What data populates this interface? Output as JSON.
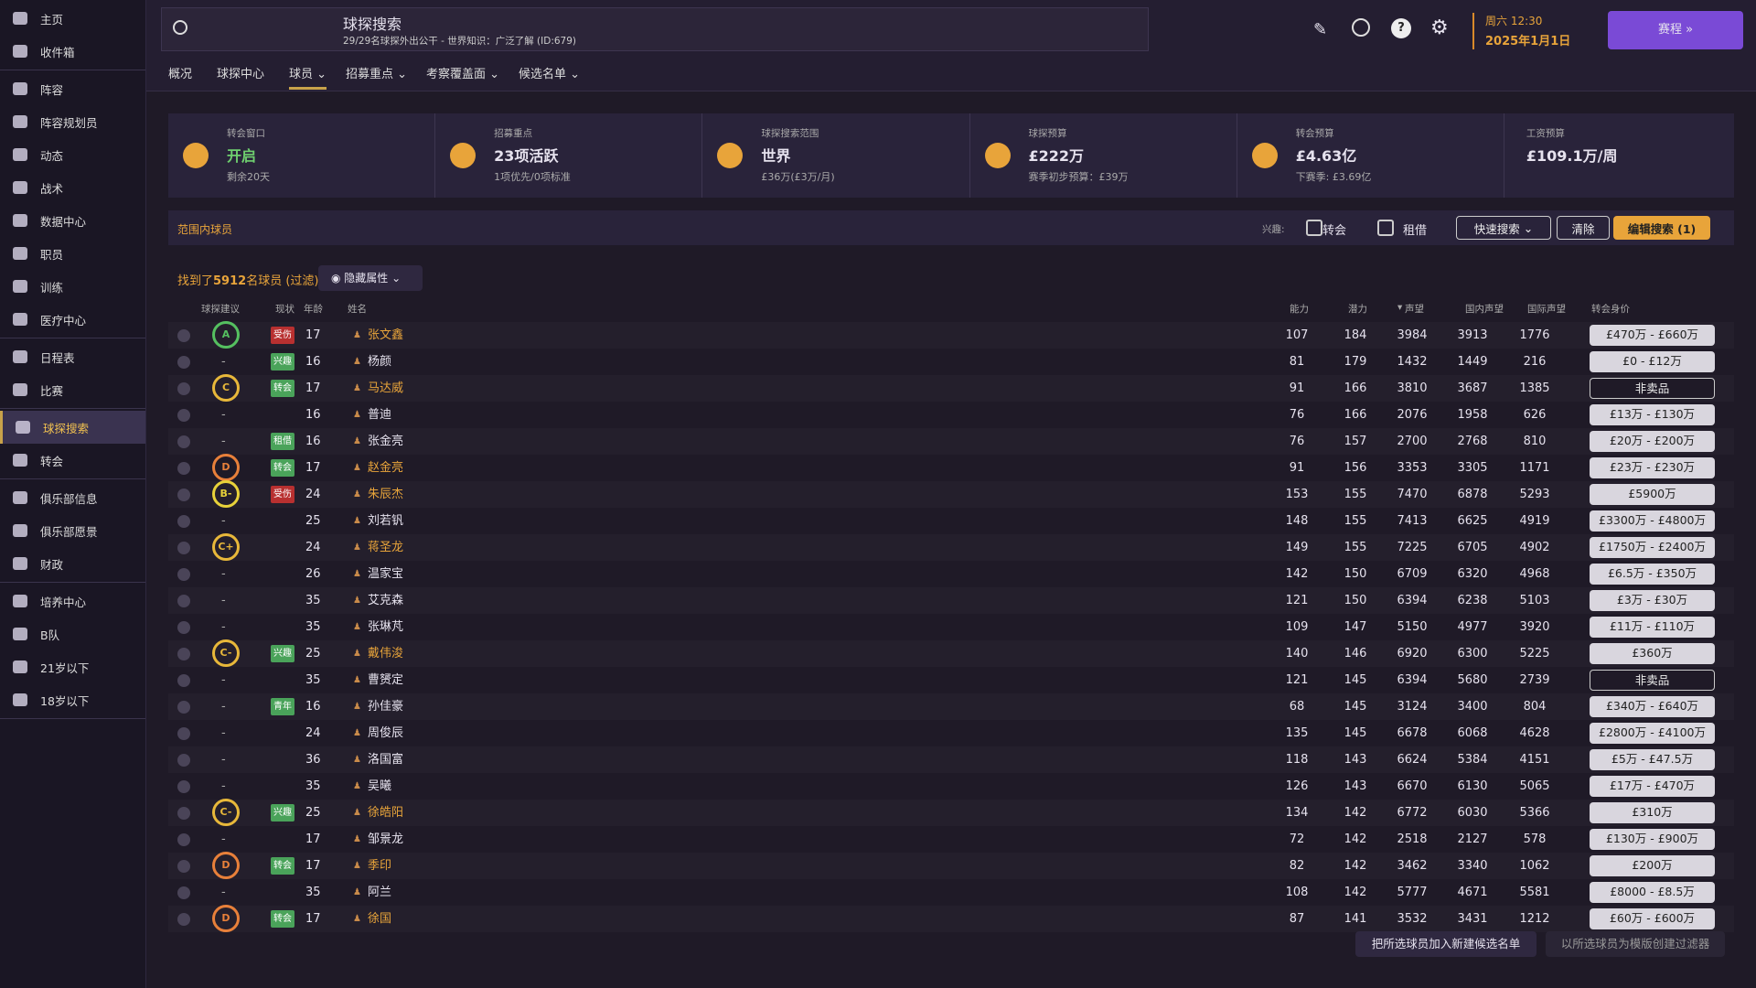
{
  "sidebar": {
    "groups": [
      [
        "主页",
        "收件箱"
      ],
      [
        "阵容",
        "阵容规划员",
        "动态",
        "战术",
        "数据中心",
        "职员",
        "训练",
        "医疗中心"
      ],
      [
        "日程表",
        "比赛"
      ],
      [
        "球探搜索",
        "转会"
      ],
      [
        "俱乐部信息",
        "俱乐部愿景",
        "财政"
      ],
      [
        "培养中心",
        "B队",
        "21岁以下",
        "18岁以下"
      ]
    ],
    "active": "球探搜索"
  },
  "header": {
    "title": "球探搜索",
    "subtitle": "29/29名球探外出公干 - 世界知识：广泛了解 (ID:679)",
    "time": "周六 12:30",
    "date": "2025年1月1日",
    "continue": "赛程"
  },
  "tabs": {
    "items": [
      "概况",
      "球探中心",
      "球员",
      "招募重点",
      "考察覆盖面",
      "候选名单"
    ],
    "active": "球员"
  },
  "cards": [
    {
      "label": "转会窗口",
      "value": "开启",
      "sub": "剩余20天"
    },
    {
      "label": "招募重点",
      "value": "23项活跃",
      "sub": "1项优先/0项标准"
    },
    {
      "label": "球探搜索范围",
      "value": "世界",
      "sub": "£36万(£3万/月)"
    },
    {
      "label": "球探预算",
      "value": "£222万",
      "sub": "赛季初步预算：£39万"
    },
    {
      "label": "转会预算",
      "value": "£4.63亿",
      "sub": "下赛季: £3.69亿"
    },
    {
      "label": "工资预算",
      "value": "£109.1万/周"
    }
  ],
  "filter": {
    "title": "范围内球员",
    "interest": "兴趣:",
    "transfer": "转会",
    "loan": "租借",
    "quick": "快速搜索",
    "clear": "清除",
    "edit": "编辑搜索 (1)"
  },
  "results": {
    "prefix": "找到了",
    "count": "5912",
    "suffix": "名球员 (过滤)",
    "hide": "隐藏属性"
  },
  "table": {
    "columns": [
      "球探建议",
      "现状",
      "年龄",
      "姓名",
      "能力",
      "潜力",
      "声望",
      "国内声望",
      "国际声望",
      "转会身价"
    ],
    "rows": [
      [
        "A",
        "受伤",
        17,
        "张文鑫",
        107,
        184,
        3984,
        3913,
        1776,
        "£470万 - £660万"
      ],
      [
        "-",
        "兴趣",
        16,
        "杨颜",
        81,
        179,
        1432,
        1449,
        216,
        "£0 - £12万"
      ],
      [
        "C",
        "转会",
        17,
        "马达威",
        91,
        166,
        3810,
        3687,
        1385,
        "非卖品"
      ],
      [
        "-",
        null,
        16,
        "普迪",
        76,
        166,
        2076,
        1958,
        626,
        "£13万 - £130万"
      ],
      [
        "-",
        "租借",
        16,
        "张金亮",
        76,
        157,
        2700,
        2768,
        810,
        "£20万 - £200万"
      ],
      [
        "D",
        "转会",
        17,
        "赵金亮",
        91,
        156,
        3353,
        3305,
        1171,
        "£23万 - £230万"
      ],
      [
        "B-",
        "受伤",
        24,
        "朱辰杰",
        153,
        155,
        7470,
        6878,
        5293,
        "£5900万"
      ],
      [
        "-",
        null,
        25,
        "刘若钒",
        148,
        155,
        7413,
        6625,
        4919,
        "£3300万 - £4800万"
      ],
      [
        "C+",
        null,
        24,
        "蒋圣龙",
        149,
        155,
        7225,
        6705,
        4902,
        "£1750万 - £2400万"
      ],
      [
        "-",
        null,
        26,
        "温家宝",
        142,
        150,
        6709,
        6320,
        4968,
        "£6.5万 - £350万"
      ],
      [
        "-",
        null,
        35,
        "艾克森",
        121,
        150,
        6394,
        6238,
        5103,
        "£3万 - £30万"
      ],
      [
        "-",
        null,
        35,
        "张琳芃",
        109,
        147,
        5150,
        4977,
        3920,
        "£11万 - £110万"
      ],
      [
        "C-",
        "兴趣",
        25,
        "戴伟浚",
        140,
        146,
        6920,
        6300,
        5225,
        "£360万"
      ],
      [
        "-",
        null,
        35,
        "曹赟定",
        121,
        145,
        6394,
        5680,
        2739,
        "非卖品"
      ],
      [
        "-",
        "青年",
        16,
        "孙佳豪",
        68,
        145,
        3124,
        3400,
        804,
        "£340万 - £640万"
      ],
      [
        "-",
        null,
        24,
        "周俊辰",
        135,
        145,
        6678,
        6068,
        4628,
        "£2800万 - £4100万"
      ],
      [
        "-",
        null,
        36,
        "洛国富",
        118,
        143,
        6624,
        5384,
        4151,
        "£5万 - £47.5万"
      ],
      [
        "-",
        null,
        35,
        "吴曦",
        126,
        143,
        6670,
        6130,
        5065,
        "£17万 - £470万"
      ],
      [
        "C-",
        "兴趣",
        25,
        "徐皓阳",
        134,
        142,
        6772,
        6030,
        5366,
        "£310万"
      ],
      [
        "-",
        null,
        17,
        "邹景龙",
        72,
        142,
        2518,
        2127,
        578,
        "£130万 - £900万"
      ],
      [
        "D",
        "转会",
        17,
        "季印",
        82,
        142,
        3462,
        3340,
        1062,
        "£200万"
      ],
      [
        "-",
        null,
        35,
        "阿兰",
        108,
        142,
        5777,
        4671,
        5581,
        "£8000 - £8.5万"
      ],
      [
        "D",
        "转会",
        17,
        "徐国",
        87,
        141,
        3532,
        3431,
        1212,
        "£60万 - £600万"
      ]
    ]
  },
  "footer": {
    "add": "把所选球员加入新建候选名单",
    "template": "以所选球员为模版创建过滤器"
  }
}
